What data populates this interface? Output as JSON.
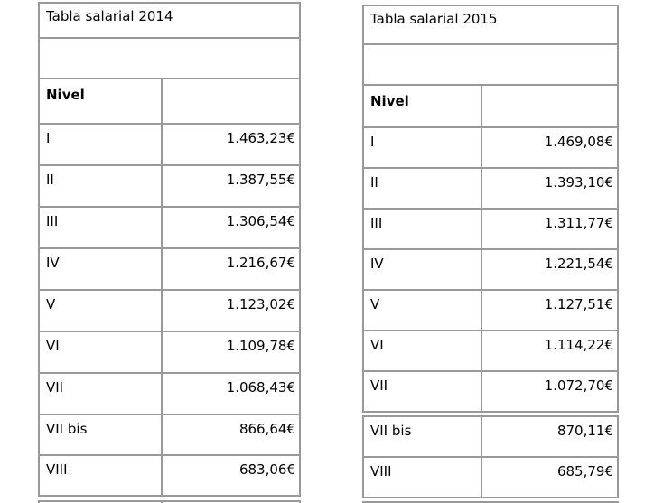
{
  "colors": {
    "border": "#999999",
    "text": "#000000",
    "background": "#ffffff"
  },
  "tables": [
    {
      "title": "Tabla salarial 2014",
      "level_header": "Nivel",
      "rows": [
        {
          "level": "I",
          "value": "1.463,23€"
        },
        {
          "level": "II",
          "value": "1.387,55€"
        },
        {
          "level": "III",
          "value": "1.306,54€"
        },
        {
          "level": "IV",
          "value": "1.216,67€"
        },
        {
          "level": "V",
          "value": "1.123,02€"
        },
        {
          "level": "VI",
          "value": "1.109,78€"
        },
        {
          "level": "VII",
          "value": "1.068,43€"
        },
        {
          "level": "VII bis",
          "value": "866,64€"
        },
        {
          "level": "VIII",
          "value": "683,06€"
        }
      ]
    },
    {
      "title": "Tabla salarial 2015",
      "level_header": "Nivel",
      "rows": [
        {
          "level": "I",
          "value": "1.469,08€"
        },
        {
          "level": "II",
          "value": "1.393,10€"
        },
        {
          "level": "III",
          "value": "1.311,77€"
        },
        {
          "level": "IV",
          "value": "1.221,54€"
        },
        {
          "level": "V",
          "value": "1.127,51€"
        },
        {
          "level": "VI",
          "value": "1.114,22€"
        },
        {
          "level": "VII",
          "value": "1.072,70€"
        },
        {
          "level": "VII bis",
          "value": "870,11€"
        },
        {
          "level": "VIII",
          "value": "685,79€"
        }
      ]
    }
  ]
}
